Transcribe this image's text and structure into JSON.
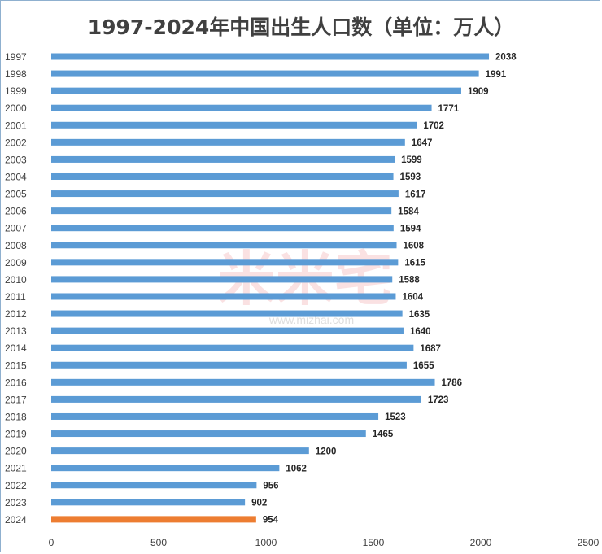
{
  "chart_data": {
    "type": "bar",
    "orientation": "horizontal",
    "title": "1997-2024年中国出生人口数（单位：万人）",
    "categories": [
      "1997",
      "1998",
      "1999",
      "2000",
      "2001",
      "2002",
      "2003",
      "2004",
      "2005",
      "2006",
      "2007",
      "2008",
      "2009",
      "2010",
      "2011",
      "2012",
      "2013",
      "2014",
      "2015",
      "2016",
      "2017",
      "2018",
      "2019",
      "2020",
      "2021",
      "2022",
      "2023",
      "2024"
    ],
    "values": [
      2038,
      1991,
      1909,
      1771,
      1702,
      1647,
      1599,
      1593,
      1617,
      1584,
      1594,
      1608,
      1615,
      1588,
      1604,
      1635,
      1640,
      1687,
      1655,
      1786,
      1723,
      1523,
      1465,
      1200,
      1062,
      956,
      902,
      954
    ],
    "xlim": [
      0,
      2500
    ],
    "x_ticks": [
      0,
      500,
      1000,
      1500,
      2000,
      2500
    ],
    "grid": false,
    "colors": {
      "default_bar": "#5b9bd5",
      "highlight_bar": "#ed7d31",
      "highlight_category": "2024"
    }
  },
  "watermark": {
    "text": "米米宅",
    "url": "www.mizhai.com"
  }
}
